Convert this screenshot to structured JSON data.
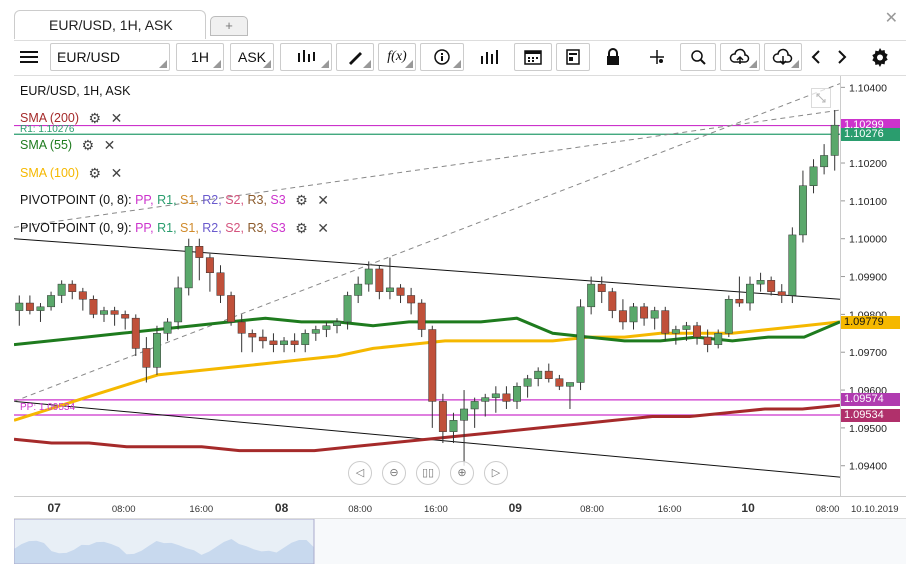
{
  "tabs": {
    "active": "EUR/USD, 1H, ASK",
    "new_tab": "+"
  },
  "toolbar": {
    "symbol": "EUR/USD",
    "period": "1H",
    "price_type": "ASK",
    "icons": [
      "menu-icon",
      "chart-type-icon",
      "draw-icon",
      "function-icon",
      "info-icon",
      "volume-icon",
      "calendar-icon",
      "report-icon",
      "lock-icon",
      "crosshair-icon",
      "zoom-icon",
      "upload-icon",
      "download-icon",
      "prev-icon",
      "next-icon",
      "settings-icon"
    ]
  },
  "legend": {
    "title": "EUR/USD, 1H, ASK",
    "sma200": "SMA (200)",
    "sma55": "SMA (55)",
    "sma100": "SMA (100)",
    "pivot1_name": "PIVOTPOINT (0, 8)",
    "pivot2_name": "PIVOTPOINT (0, 9)",
    "pivot_sep": ": ",
    "pivot_items": [
      {
        "label": "PP",
        "color": "#cc33cc"
      },
      {
        "label": "R1",
        "color": "#2a9d6e"
      },
      {
        "label": "S1",
        "color": "#d08a2a"
      },
      {
        "label": "R2",
        "color": "#6a5acd"
      },
      {
        "label": "S2",
        "color": "#d4547e"
      },
      {
        "label": "R3",
        "color": "#8b5a2b"
      },
      {
        "label": "S3",
        "color": "#cc33cc"
      }
    ]
  },
  "colors": {
    "sma200": "#a52a2a",
    "sma55": "#1e7b1e",
    "sma100": "#f5b800",
    "up": "#5aa86b",
    "down": "#c0503a",
    "pp": "#cc33cc",
    "r1": "#2a9d6e"
  },
  "chart_data": {
    "type": "candlestick",
    "symbol": "EUR/USD",
    "timeframe": "1H",
    "x_tick_labels": [
      "07",
      "08:00",
      "16:00",
      "08",
      "08:00",
      "16:00",
      "09",
      "08:00",
      "16:00",
      "10",
      "08:00",
      "10.10.2019"
    ],
    "y_ticks": [
      1.094,
      1.095,
      1.096,
      1.097,
      1.098,
      1.099,
      1.1,
      1.101,
      1.102,
      1.103,
      1.104
    ],
    "y_tick_labels": [
      "1.09400",
      "1.09500",
      "1.09600",
      "1.09700",
      "1.09800",
      "1.09900",
      "1.10000",
      "1.10100",
      "1.10200",
      "1.10300",
      "1.10400"
    ],
    "ylim": [
      1.0932,
      1.1043
    ],
    "level_labels": {
      "pp": "PP: 1.09534",
      "r1": "R1: 1.10276"
    },
    "price_tags": [
      {
        "label": "1.10299",
        "value": 1.10299,
        "color": "#cc33cc"
      },
      {
        "label": "1.10276",
        "value": 1.10276,
        "color": "#2a9d6e"
      },
      {
        "label": "1.09779",
        "value": 1.09779,
        "color": "#f5b800"
      },
      {
        "label": "1.09574",
        "value": 1.09574,
        "color": "#b03bb0"
      },
      {
        "label": "1.09534",
        "value": 1.09534,
        "color": "#b0306b"
      }
    ],
    "horizontal_levels": [
      {
        "name": "R1 (0,8)",
        "value": 1.10276,
        "color": "#2a9d6e"
      },
      {
        "name": "PP (0,9)",
        "value": 1.10299,
        "color": "#cc33cc"
      },
      {
        "name": "PP (0,8)",
        "value": 1.09534,
        "color": "#cc33cc"
      },
      {
        "name": "level",
        "value": 1.09574,
        "color": "#cc33cc"
      }
    ],
    "candles": [
      [
        1.0981,
        1.0985,
        1.0977,
        1.0983
      ],
      [
        1.0983,
        1.0985,
        1.098,
        1.0981
      ],
      [
        1.0981,
        1.0983,
        1.0978,
        1.0982
      ],
      [
        1.0982,
        1.0986,
        1.0981,
        1.0985
      ],
      [
        1.0985,
        1.0989,
        1.0983,
        1.0988
      ],
      [
        1.0988,
        1.0989,
        1.0984,
        1.0986
      ],
      [
        1.0986,
        1.0987,
        1.0981,
        1.0984
      ],
      [
        1.0984,
        1.0985,
        1.0979,
        1.098
      ],
      [
        1.098,
        1.0982,
        1.0978,
        1.0981
      ],
      [
        1.0981,
        1.0982,
        1.0977,
        1.098
      ],
      [
        1.098,
        1.0981,
        1.0976,
        1.0979
      ],
      [
        1.0979,
        1.098,
        1.0969,
        1.0971
      ],
      [
        1.0971,
        1.0974,
        1.0962,
        1.0966
      ],
      [
        1.0966,
        1.0977,
        1.0964,
        1.0975
      ],
      [
        1.0975,
        1.0979,
        1.0973,
        1.0978
      ],
      [
        1.0978,
        1.099,
        1.0976,
        1.0987
      ],
      [
        1.0987,
        1.1,
        1.0985,
        1.0998
      ],
      [
        1.0998,
        1.1,
        1.0989,
        1.0995
      ],
      [
        1.0995,
        1.0996,
        1.0986,
        1.0991
      ],
      [
        1.0991,
        1.0993,
        1.0983,
        1.0985
      ],
      [
        1.0985,
        1.0986,
        1.0977,
        1.0978
      ],
      [
        1.0978,
        1.098,
        1.097,
        1.0975
      ],
      [
        1.0975,
        1.0976,
        1.097,
        1.0974
      ],
      [
        1.0974,
        1.0976,
        1.0971,
        1.0973
      ],
      [
        1.0973,
        1.0975,
        1.097,
        1.0972
      ],
      [
        1.0972,
        1.0974,
        1.097,
        1.0973
      ],
      [
        1.0973,
        1.0975,
        1.097,
        1.0972
      ],
      [
        1.0972,
        1.0976,
        1.097,
        1.0975
      ],
      [
        1.0975,
        1.0977,
        1.0973,
        1.0976
      ],
      [
        1.0976,
        1.0978,
        1.0974,
        1.0977
      ],
      [
        1.0977,
        1.0979,
        1.0975,
        1.0978
      ],
      [
        1.0978,
        1.0986,
        1.0976,
        1.0985
      ],
      [
        1.0985,
        1.099,
        1.0983,
        1.0988
      ],
      [
        1.0988,
        1.0994,
        1.0986,
        1.0992
      ],
      [
        1.0992,
        1.0993,
        1.0984,
        1.0986
      ],
      [
        1.0986,
        1.0995,
        1.0984,
        1.0987
      ],
      [
        1.0987,
        1.0988,
        1.0983,
        1.0985
      ],
      [
        1.0985,
        1.0987,
        1.098,
        1.0983
      ],
      [
        1.0983,
        1.0984,
        1.0974,
        1.0976
      ],
      [
        1.0976,
        1.0977,
        1.095,
        1.0957
      ],
      [
        1.0957,
        1.0959,
        1.0946,
        1.0949
      ],
      [
        1.0949,
        1.0954,
        1.0946,
        1.0952
      ],
      [
        1.0952,
        1.096,
        1.094,
        1.0955
      ],
      [
        1.0955,
        1.0958,
        1.095,
        1.0957
      ],
      [
        1.0957,
        1.0959,
        1.0953,
        1.0958
      ],
      [
        1.0958,
        1.0961,
        1.0954,
        1.0959
      ],
      [
        1.0959,
        1.0961,
        1.0955,
        1.0957
      ],
      [
        1.0957,
        1.0962,
        1.0955,
        1.0961
      ],
      [
        1.0961,
        1.0964,
        1.0958,
        1.0963
      ],
      [
        1.0963,
        1.0966,
        1.0961,
        1.0965
      ],
      [
        1.0965,
        1.0967,
        1.0962,
        1.0963
      ],
      [
        1.0963,
        1.0964,
        1.096,
        1.0961
      ],
      [
        1.0961,
        1.0962,
        1.0955,
        1.0962
      ],
      [
        1.0962,
        1.0984,
        1.096,
        1.0982
      ],
      [
        1.0982,
        1.099,
        1.098,
        1.0988
      ],
      [
        1.0988,
        1.099,
        1.0983,
        1.0986
      ],
      [
        1.0986,
        1.0987,
        1.0979,
        1.0981
      ],
      [
        1.0981,
        1.0984,
        1.0976,
        1.0978
      ],
      [
        1.0978,
        1.0983,
        1.0976,
        1.0982
      ],
      [
        1.0982,
        1.0983,
        1.0977,
        1.0979
      ],
      [
        1.0979,
        1.0982,
        1.0976,
        1.0981
      ],
      [
        1.0981,
        1.0982,
        1.0973,
        1.0975
      ],
      [
        1.0975,
        1.0977,
        1.0972,
        1.0976
      ],
      [
        1.0976,
        1.0978,
        1.0973,
        1.0977
      ],
      [
        1.0977,
        1.0978,
        1.0972,
        1.0974
      ],
      [
        1.0974,
        1.0976,
        1.097,
        1.0972
      ],
      [
        1.0972,
        1.0976,
        1.0971,
        1.0975
      ],
      [
        1.0975,
        1.0985,
        1.0974,
        1.0984
      ],
      [
        1.0984,
        1.099,
        1.0982,
        1.0983
      ],
      [
        1.0983,
        1.099,
        1.0981,
        1.0988
      ],
      [
        1.0988,
        1.0991,
        1.0986,
        1.0989
      ],
      [
        1.0989,
        1.099,
        1.0985,
        1.0986
      ],
      [
        1.0986,
        1.0988,
        1.0983,
        1.0985
      ],
      [
        1.0985,
        1.1003,
        1.0983,
        1.1001
      ],
      [
        1.1001,
        1.1018,
        1.0999,
        1.1014
      ],
      [
        1.1014,
        1.1021,
        1.1012,
        1.1019
      ],
      [
        1.1019,
        1.1025,
        1.1017,
        1.1022
      ],
      [
        1.1022,
        1.1034,
        1.1018,
        1.103
      ]
    ],
    "sma200": [
      1.0947,
      1.0946,
      1.0946,
      1.0945,
      1.0945,
      1.0945,
      1.0944,
      1.0944,
      1.0944,
      1.0945,
      1.0946,
      1.0947,
      1.0948,
      1.0949,
      1.095,
      1.0951,
      1.0952,
      1.0953,
      1.0953,
      1.0954,
      1.0955,
      1.0955,
      1.0956
    ],
    "sma55": [
      1.0972,
      1.0973,
      1.0974,
      1.0975,
      1.0976,
      1.0977,
      1.0978,
      1.0979,
      1.0978,
      1.0978,
      1.0977,
      1.0978,
      1.0978,
      1.0978,
      1.0979,
      1.0975,
      1.0974,
      1.0973,
      1.0973,
      1.0974,
      1.0973,
      1.0974,
      1.0974,
      1.0978
    ],
    "sma100": [
      1.0952,
      1.0955,
      1.0958,
      1.0961,
      1.0964,
      1.0965,
      1.0966,
      1.0967,
      1.0968,
      1.0969,
      1.0971,
      1.0972,
      1.0973,
      1.0973,
      1.0973,
      1.0973,
      1.0974,
      1.0974,
      1.0975,
      1.0975,
      1.0975,
      1.0976,
      1.0977,
      1.0978
    ],
    "trendlines": [
      {
        "style": "solid",
        "from": [
          1.1
        ],
        "to": [
          1.0984
        ]
      },
      {
        "style": "solid",
        "from": [
          1.0957
        ],
        "to": [
          1.0937
        ]
      },
      {
        "style": "dashed",
        "from": [
          1.0957
        ],
        "to": [
          1.1041
        ]
      },
      {
        "style": "dashed",
        "from": [
          1.1003
        ],
        "to": [
          1.1034
        ]
      }
    ]
  },
  "nav_buttons": [
    "prev",
    "zoom-out",
    "pause",
    "zoom-in",
    "next"
  ]
}
